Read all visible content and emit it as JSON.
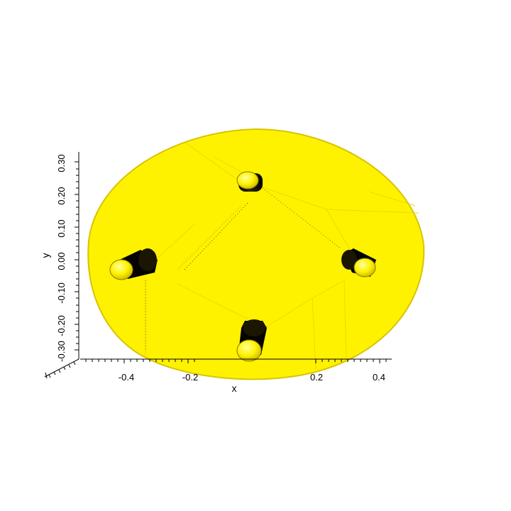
{
  "scene": {
    "object_color": "#fff200",
    "object_edge_color": "#d8c400",
    "hole_color": "#1a1600",
    "background": "#ffffff"
  },
  "axes": {
    "x": {
      "label": "x",
      "ticks": [
        "-0.4",
        "-0.2",
        "0.2",
        "0.4"
      ]
    },
    "y": {
      "label": "y",
      "ticks": [
        "0.30",
        "0.20",
        "0.10",
        "0.00",
        "-0.10",
        "-0.20",
        "-0.30"
      ]
    }
  }
}
